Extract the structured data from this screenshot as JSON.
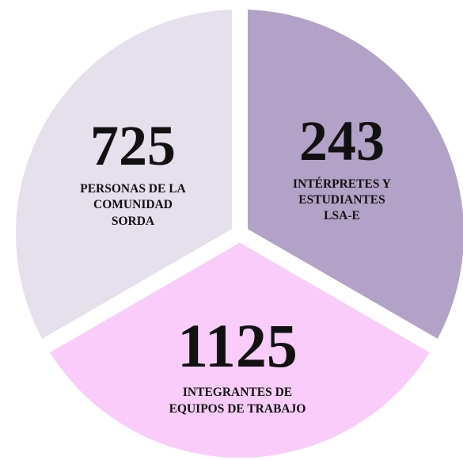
{
  "segments": [
    {
      "value": "725",
      "label": [
        "PERSONAS DE LA",
        "COMUNIDAD",
        "SORDA"
      ]
    },
    {
      "value": "243",
      "label": [
        "INTÉRPRETES Y",
        "ESTUDIANTES",
        "LSA-E"
      ]
    },
    {
      "value": "1125",
      "label": [
        "INTEGRANTES DE",
        "EQUIPOS DE TRABAJO"
      ]
    }
  ]
}
